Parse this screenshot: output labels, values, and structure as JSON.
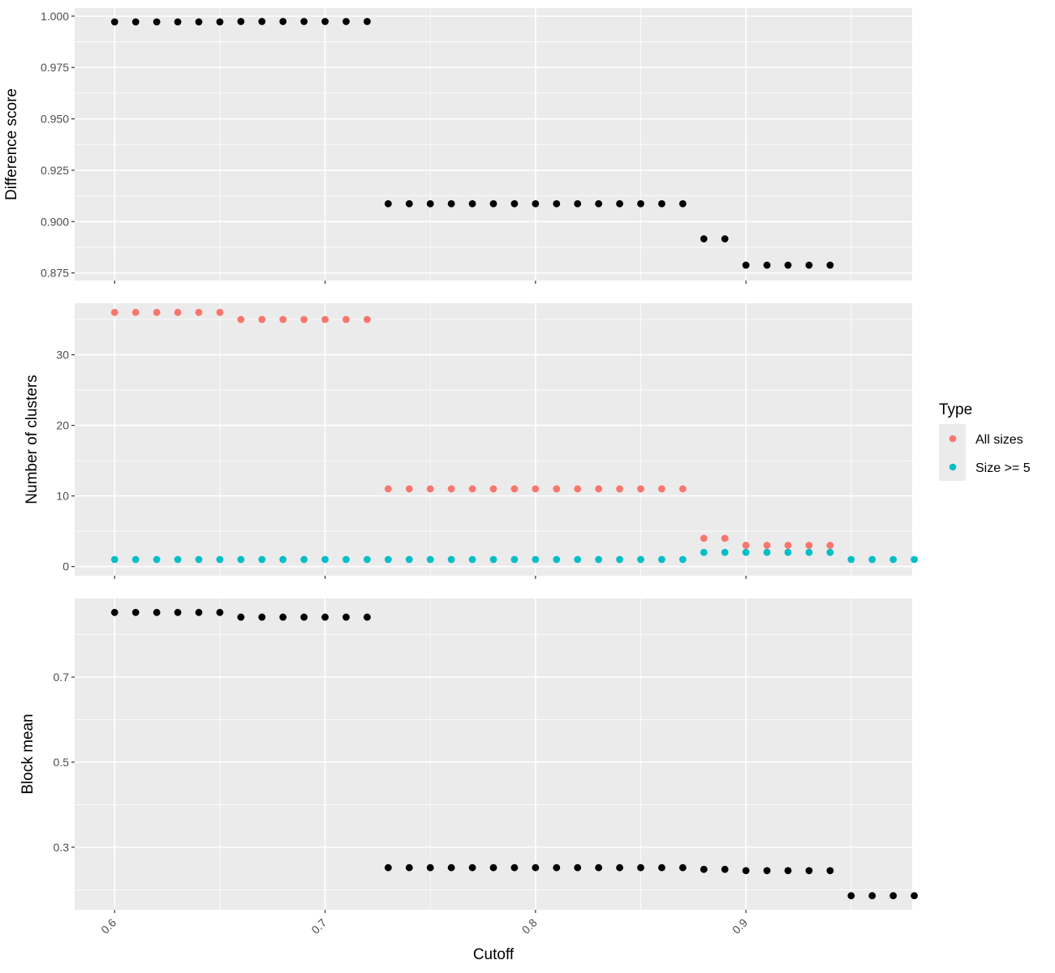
{
  "chart_data": {
    "type": "scatter",
    "xlabel": "Cutoff",
    "x_ticks": [
      "0.6",
      "0.7",
      "0.8",
      "0.9"
    ],
    "x_tick_values": [
      0.6,
      0.7,
      0.8,
      0.9
    ],
    "xlim": [
      0.581,
      0.979
    ],
    "background": "#ebebeb",
    "grid": true,
    "legend": {
      "title": "Type",
      "position": "right",
      "entries": [
        {
          "label": "All sizes",
          "color": "#f8766d"
        },
        {
          "label": "Size >= 5",
          "color": "#00bfc4"
        }
      ]
    },
    "panels": [
      {
        "ylabel": "Difference score",
        "ylim": [
          0.8713,
          1.0039
        ],
        "y_ticks": [
          "0.875",
          "0.900",
          "0.925",
          "0.950",
          "0.975",
          "1.000"
        ],
        "y_tick_values": [
          0.875,
          0.9,
          0.925,
          0.95,
          0.975,
          1.0
        ],
        "series": [
          {
            "color": "#000000",
            "x": [
              0.6,
              0.61,
              0.62,
              0.63,
              0.64,
              0.65,
              0.66,
              0.67,
              0.68,
              0.69,
              0.7,
              0.71,
              0.72,
              0.73,
              0.74,
              0.75,
              0.76,
              0.77,
              0.78,
              0.79,
              0.8,
              0.81,
              0.82,
              0.83,
              0.84,
              0.85,
              0.86,
              0.87,
              0.88,
              0.89,
              0.9,
              0.91,
              0.92,
              0.93,
              0.94
            ],
            "y": [
              0.9972,
              0.9972,
              0.9972,
              0.9972,
              0.9972,
              0.9972,
              0.9974,
              0.9974,
              0.9974,
              0.9974,
              0.9974,
              0.9974,
              0.9974,
              0.9087,
              0.9087,
              0.9087,
              0.9087,
              0.9087,
              0.9087,
              0.9087,
              0.9087,
              0.9087,
              0.9087,
              0.9087,
              0.9087,
              0.9087,
              0.9087,
              0.9087,
              0.8916,
              0.8916,
              0.8788,
              0.8788,
              0.8788,
              0.8788,
              0.8788
            ]
          }
        ]
      },
      {
        "ylabel": "Number of clusters",
        "ylim": [
          -1.3,
          37.3
        ],
        "y_ticks": [
          "0",
          "10",
          "20",
          "30"
        ],
        "y_tick_values": [
          0,
          10,
          20,
          30
        ],
        "series": [
          {
            "name": "All sizes",
            "color": "#f8766d",
            "x": [
              0.6,
              0.61,
              0.62,
              0.63,
              0.64,
              0.65,
              0.66,
              0.67,
              0.68,
              0.69,
              0.7,
              0.71,
              0.72,
              0.73,
              0.74,
              0.75,
              0.76,
              0.77,
              0.78,
              0.79,
              0.8,
              0.81,
              0.82,
              0.83,
              0.84,
              0.85,
              0.86,
              0.87,
              0.88,
              0.89,
              0.9,
              0.91,
              0.92,
              0.93,
              0.94
            ],
            "y": [
              36,
              36,
              36,
              36,
              36,
              36,
              35,
              35,
              35,
              35,
              35,
              35,
              35,
              11,
              11,
              11,
              11,
              11,
              11,
              11,
              11,
              11,
              11,
              11,
              11,
              11,
              11,
              11,
              4,
              4,
              3,
              3,
              3,
              3,
              3
            ]
          },
          {
            "name": "Size >= 5",
            "color": "#00bfc4",
            "x": [
              0.6,
              0.61,
              0.62,
              0.63,
              0.64,
              0.65,
              0.66,
              0.67,
              0.68,
              0.69,
              0.7,
              0.71,
              0.72,
              0.73,
              0.74,
              0.75,
              0.76,
              0.77,
              0.78,
              0.79,
              0.8,
              0.81,
              0.82,
              0.83,
              0.84,
              0.85,
              0.86,
              0.87,
              0.88,
              0.89,
              0.9,
              0.91,
              0.92,
              0.93,
              0.94,
              0.95,
              0.96,
              0.97,
              0.98
            ],
            "y": [
              1,
              1,
              1,
              1,
              1,
              1,
              1,
              1,
              1,
              1,
              1,
              1,
              1,
              1,
              1,
              1,
              1,
              1,
              1,
              1,
              1,
              1,
              1,
              1,
              1,
              1,
              1,
              1,
              2,
              2,
              2,
              2,
              2,
              2,
              2,
              1,
              1,
              1,
              1
            ]
          }
        ]
      },
      {
        "ylabel": "Block mean",
        "ylim": [
          0.153,
          0.885
        ],
        "y_ticks": [
          "0.3",
          "0.5",
          "0.7"
        ],
        "y_tick_values": [
          0.3,
          0.5,
          0.7
        ],
        "series": [
          {
            "color": "#000000",
            "x": [
              0.6,
              0.61,
              0.62,
              0.63,
              0.64,
              0.65,
              0.66,
              0.67,
              0.68,
              0.69,
              0.7,
              0.71,
              0.72,
              0.73,
              0.74,
              0.75,
              0.76,
              0.77,
              0.78,
              0.79,
              0.8,
              0.81,
              0.82,
              0.83,
              0.84,
              0.85,
              0.86,
              0.87,
              0.88,
              0.89,
              0.9,
              0.91,
              0.92,
              0.93,
              0.94,
              0.95,
              0.96,
              0.97,
              0.98
            ],
            "y": [
              0.852,
              0.852,
              0.852,
              0.852,
              0.852,
              0.852,
              0.841,
              0.841,
              0.841,
              0.841,
              0.841,
              0.841,
              0.841,
              0.252,
              0.252,
              0.252,
              0.252,
              0.252,
              0.252,
              0.252,
              0.252,
              0.252,
              0.252,
              0.252,
              0.252,
              0.252,
              0.252,
              0.252,
              0.248,
              0.248,
              0.245,
              0.245,
              0.245,
              0.245,
              0.245,
              0.186,
              0.186,
              0.186,
              0.186
            ]
          }
        ]
      }
    ]
  }
}
